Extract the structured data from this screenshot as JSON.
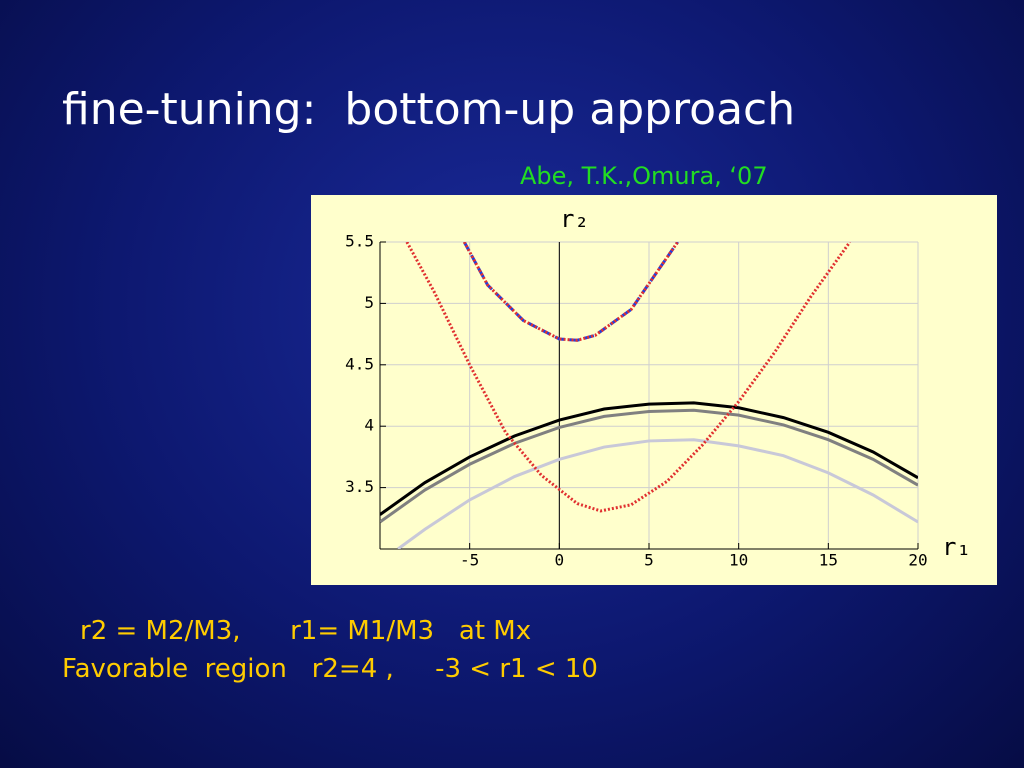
{
  "slide": {
    "title": "fine-tuning:  bottom-up approach",
    "citation": "Abe, T.K.,Omura, ‘07",
    "notes": [
      "r2 = M2/M3,      r1= M1/M3   at Mx",
      "Favorable  region   r2=4 ,     -3 < r1 < 10"
    ]
  },
  "chart_data": {
    "type": "line",
    "xlabel": "r₁",
    "ylabel": "r₂",
    "xlim": [
      -10,
      20
    ],
    "ylim": [
      3,
      5.5
    ],
    "xticks": [
      -5,
      0,
      5,
      10,
      15,
      20
    ],
    "yticks": [
      3.5,
      4,
      4.5,
      5,
      5.5
    ],
    "grid": true,
    "series": [
      {
        "color": "#000000",
        "line_style": "solid",
        "x": [
          -10,
          -7.5,
          -5,
          -2.5,
          0,
          2.5,
          5,
          7.5,
          10,
          12.5,
          15,
          17.5,
          20
        ],
        "values": [
          3.28,
          3.54,
          3.75,
          3.92,
          4.05,
          4.14,
          4.18,
          4.19,
          4.15,
          4.07,
          3.95,
          3.79,
          3.58
        ]
      },
      {
        "color": "#808080",
        "line_style": "solid",
        "x": [
          -10,
          -7.5,
          -5,
          -2.5,
          0,
          2.5,
          5,
          7.5,
          10,
          12.5,
          15,
          17.5,
          20
        ],
        "values": [
          3.22,
          3.48,
          3.69,
          3.86,
          3.99,
          4.08,
          4.12,
          4.13,
          4.09,
          4.01,
          3.89,
          3.73,
          3.52
        ]
      },
      {
        "color": "#c8c8d8",
        "line_style": "solid",
        "x": [
          -9,
          -7.5,
          -5,
          -2.5,
          0,
          2.5,
          5,
          7.5,
          10,
          12.5,
          15,
          17.5,
          20
        ],
        "values": [
          3.0,
          3.16,
          3.4,
          3.59,
          3.73,
          3.83,
          3.88,
          3.89,
          3.84,
          3.76,
          3.62,
          3.44,
          3.22
        ]
      },
      {
        "color": "#e03030",
        "line_style": "dotted",
        "x": [
          -8.5,
          -7,
          -5,
          -3,
          -1,
          1,
          2.3,
          4,
          6,
          8,
          10,
          12,
          14,
          16.2
        ],
        "values": [
          5.5,
          5.1,
          4.5,
          3.95,
          3.6,
          3.37,
          3.31,
          3.36,
          3.55,
          3.85,
          4.2,
          4.6,
          5.05,
          5.5
        ]
      },
      {
        "color": "#2040e0",
        "line_style": "dashed",
        "x": [
          -5.3,
          -4,
          -2,
          0,
          1,
          2,
          4,
          6.6
        ],
        "values": [
          5.5,
          5.15,
          4.86,
          4.71,
          4.7,
          4.74,
          4.95,
          5.5
        ]
      },
      {
        "color": "#e03030",
        "line_style": "dotted",
        "x": [
          -5.3,
          -4,
          -2,
          0,
          1,
          2,
          4,
          6.6
        ],
        "values": [
          5.5,
          5.15,
          4.86,
          4.71,
          4.7,
          4.74,
          4.95,
          5.5
        ]
      }
    ]
  }
}
